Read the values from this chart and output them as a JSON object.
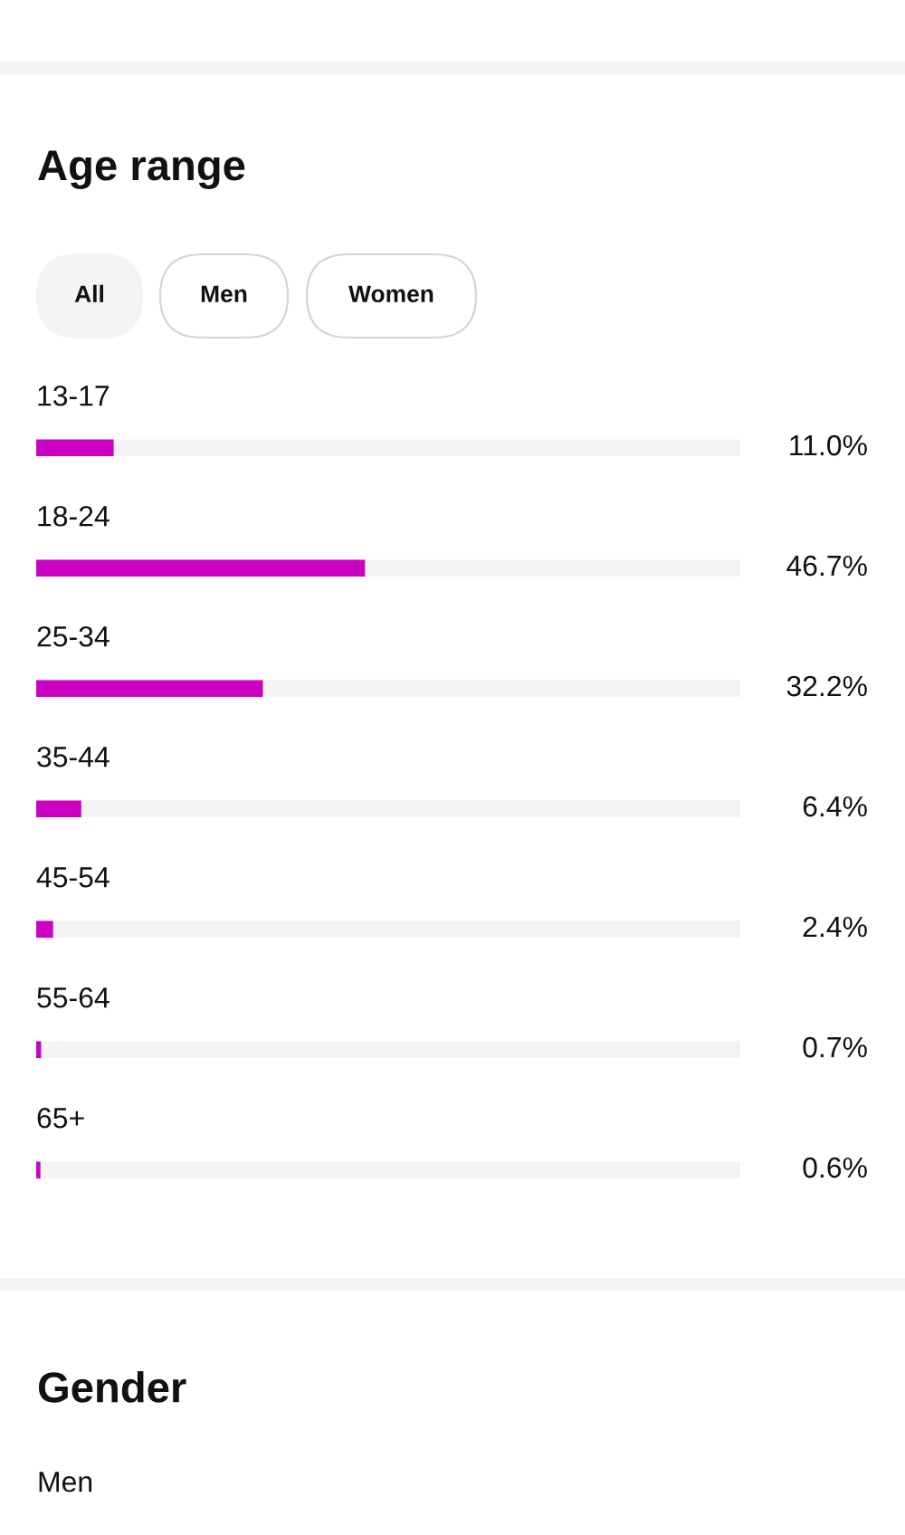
{
  "chart_data": {
    "type": "bar",
    "orientation": "horizontal",
    "title": "Age range",
    "categories": [
      "13-17",
      "18-24",
      "25-34",
      "35-44",
      "45-54",
      "55-64",
      "65+"
    ],
    "values": [
      11.0,
      46.7,
      32.2,
      6.4,
      2.4,
      0.7,
      0.6
    ],
    "value_labels": [
      "11.0%",
      "46.7%",
      "32.2%",
      "6.4%",
      "2.4%",
      "0.7%",
      "0.6%"
    ],
    "color": "#cc00c2",
    "xlim": [
      0,
      100
    ],
    "annotations": [
      "All",
      "Men",
      "Women",
      "Gender",
      "Men"
    ]
  }
}
